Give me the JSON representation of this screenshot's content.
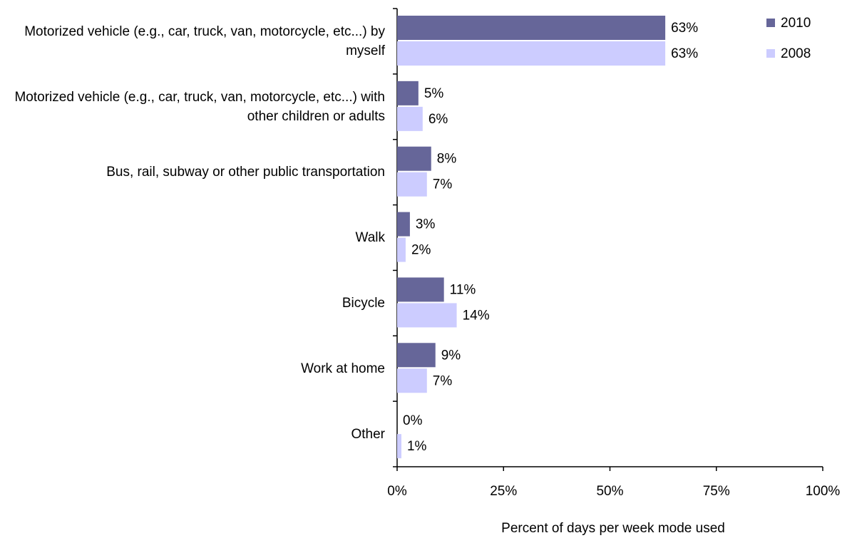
{
  "chart_data": {
    "type": "hbar",
    "categories": [
      "Motorized vehicle (e.g., car, truck, van, motorcycle, etc...) by myself",
      "Motorized vehicle (e.g., car, truck, van, motorcycle, etc...) with other children or adults",
      "Bus, rail, subway or other public transportation",
      "Walk",
      "Bicycle",
      "Work at home",
      "Other"
    ],
    "series": [
      {
        "name": "2010",
        "color": "#666699",
        "values": [
          63,
          5,
          8,
          3,
          11,
          9,
          0
        ],
        "value_labels": [
          "63%",
          "5%",
          "8%",
          "3%",
          "11%",
          "9%",
          "0%"
        ]
      },
      {
        "name": "2008",
        "color": "#ccccff",
        "values": [
          63,
          6,
          7,
          2,
          14,
          7,
          1
        ],
        "value_labels": [
          "63%",
          "6%",
          "7%",
          "2%",
          "14%",
          "7%",
          "1%"
        ]
      }
    ],
    "xlabel": "Percent of days per week mode used",
    "xlim": [
      0,
      100
    ],
    "xticks": [
      {
        "value": 0,
        "label": "0%"
      },
      {
        "value": 25,
        "label": "25%"
      },
      {
        "value": 50,
        "label": "50%"
      },
      {
        "value": 75,
        "label": "75%"
      },
      {
        "value": 100,
        "label": "100%"
      }
    ],
    "legend": "top-right"
  }
}
